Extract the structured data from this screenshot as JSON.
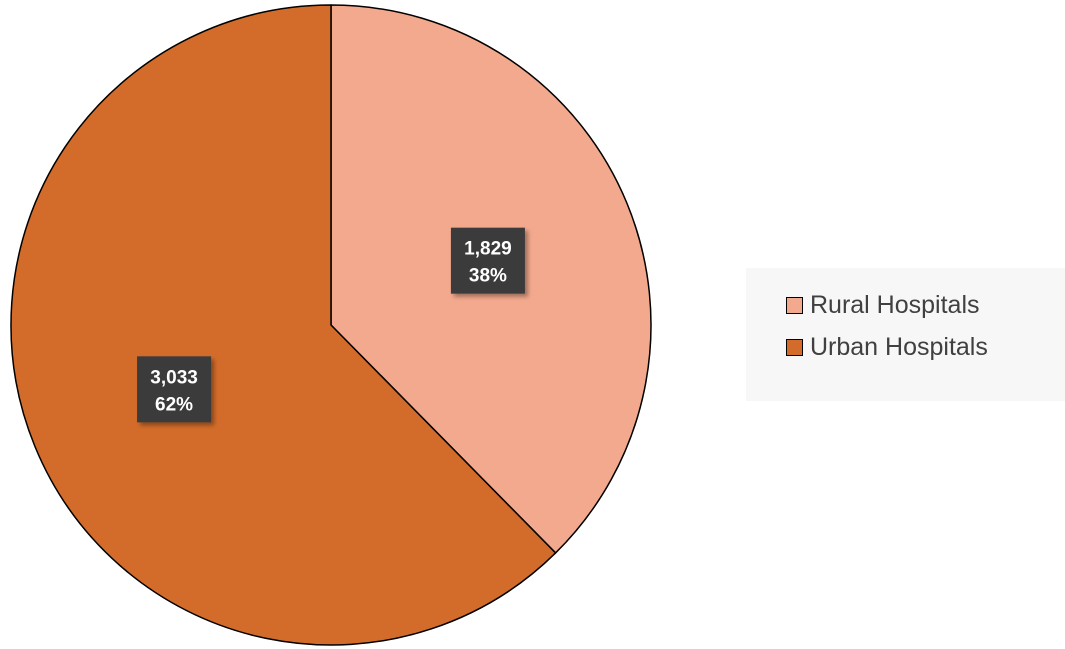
{
  "chart_data": {
    "type": "pie",
    "title": "",
    "categories": [
      "Rural Hospitals",
      "Urban Hospitals"
    ],
    "values": [
      1829,
      3033
    ],
    "value_labels": [
      "1,829",
      "3,033"
    ],
    "percent_labels": [
      "38%",
      "62%"
    ],
    "colors": [
      "#f3a98d",
      "#d36c2a"
    ],
    "start_angle_deg": 0,
    "direction": "clockwise",
    "legend_position": "right"
  }
}
